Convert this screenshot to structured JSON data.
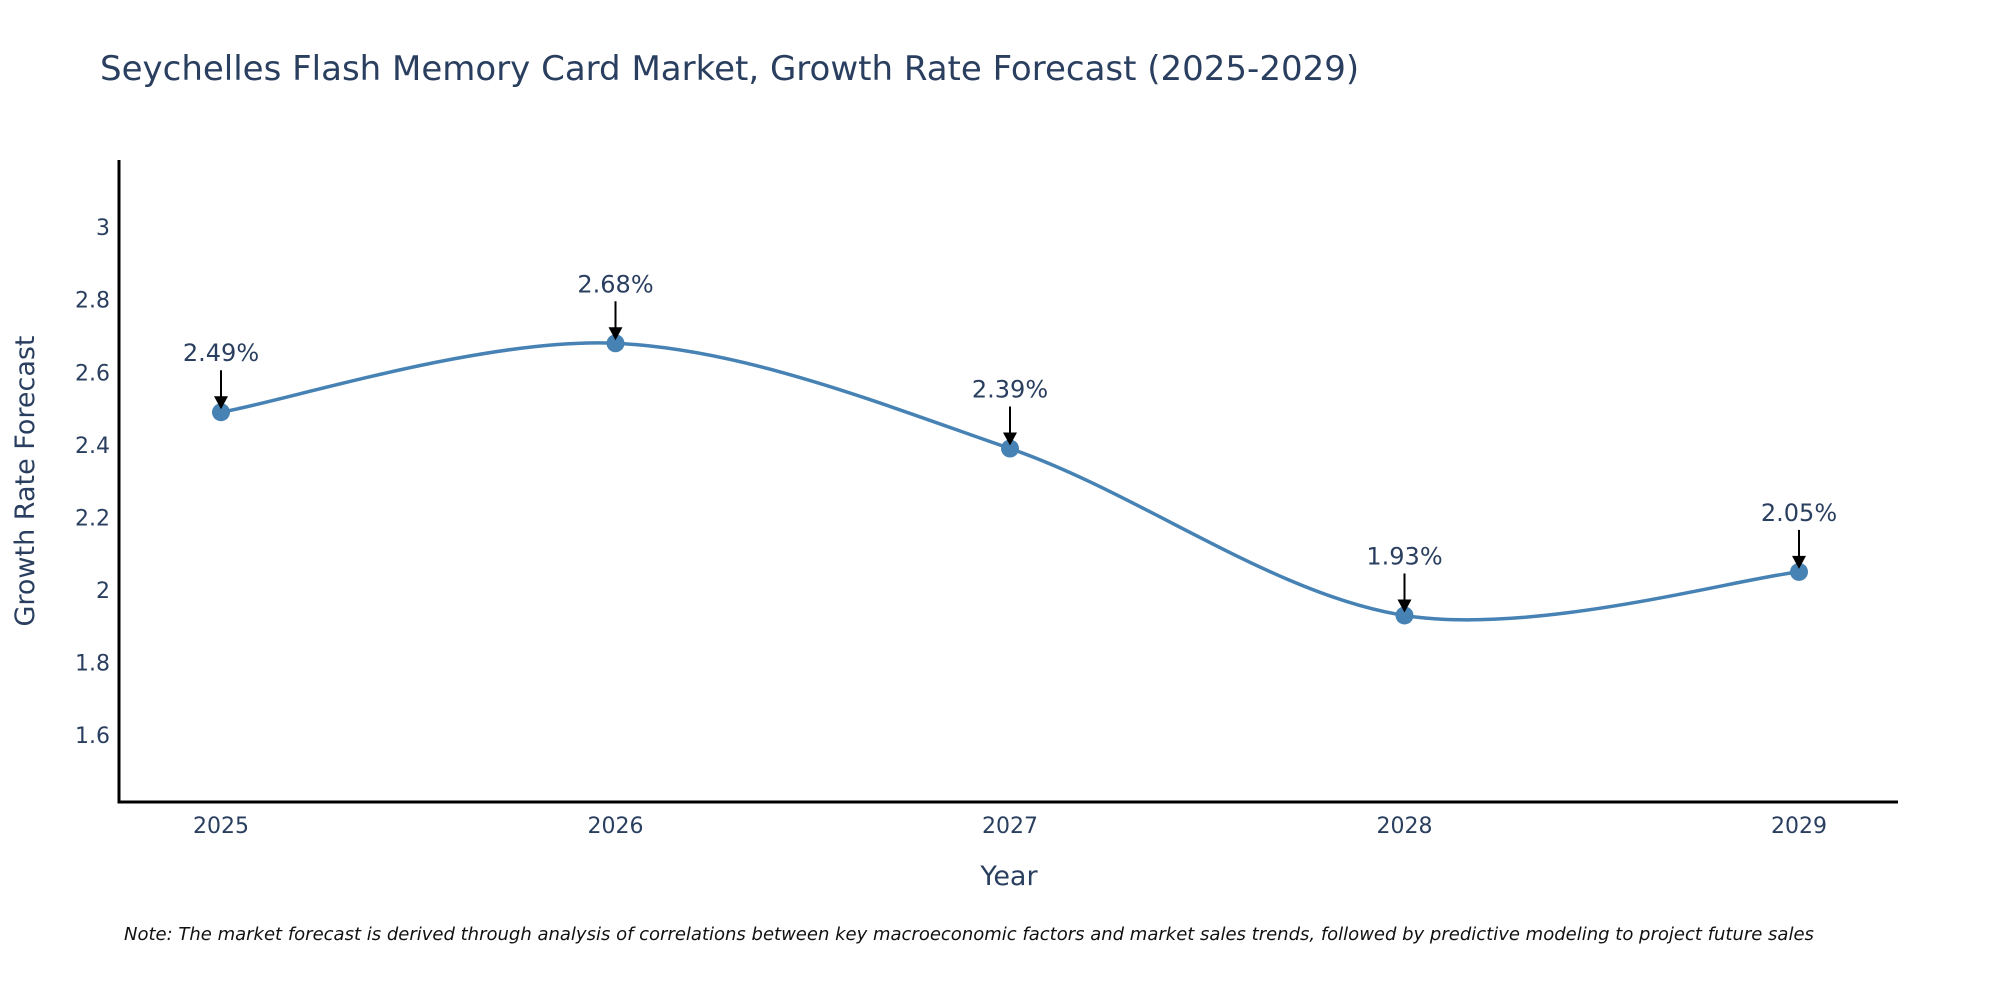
{
  "chart_data": {
    "type": "line",
    "title": "Seychelles Flash Memory Card Market, Growth Rate Forecast (2025-2029)",
    "xlabel": "Year",
    "ylabel": "Growth Rate Forecast",
    "x": [
      "2025",
      "2026",
      "2027",
      "2028",
      "2029"
    ],
    "series": [
      {
        "name": "Growth Rate Forecast",
        "values": [
          2.49,
          2.68,
          2.39,
          1.93,
          2.05
        ],
        "color": "#4682b4",
        "line_shape": "spline",
        "markers": true
      }
    ],
    "annotations": [
      "2.49%",
      "2.68%",
      "2.39%",
      "1.93%",
      "2.05%"
    ],
    "y_ticks": [
      "1.6",
      "1.8",
      "2",
      "2.2",
      "2.4",
      "2.6",
      "2.8",
      "3"
    ],
    "y_tick_values": [
      1.6,
      1.8,
      2.0,
      2.2,
      2.4,
      2.6,
      2.8,
      3.0
    ],
    "ylim": [
      1.416,
      3.185
    ],
    "grid": false,
    "legend": "none",
    "note": "Note: The market forecast is derived through analysis of correlations between key macroeconomic factors and market sales trends, followed by predictive modeling to project future sales"
  }
}
